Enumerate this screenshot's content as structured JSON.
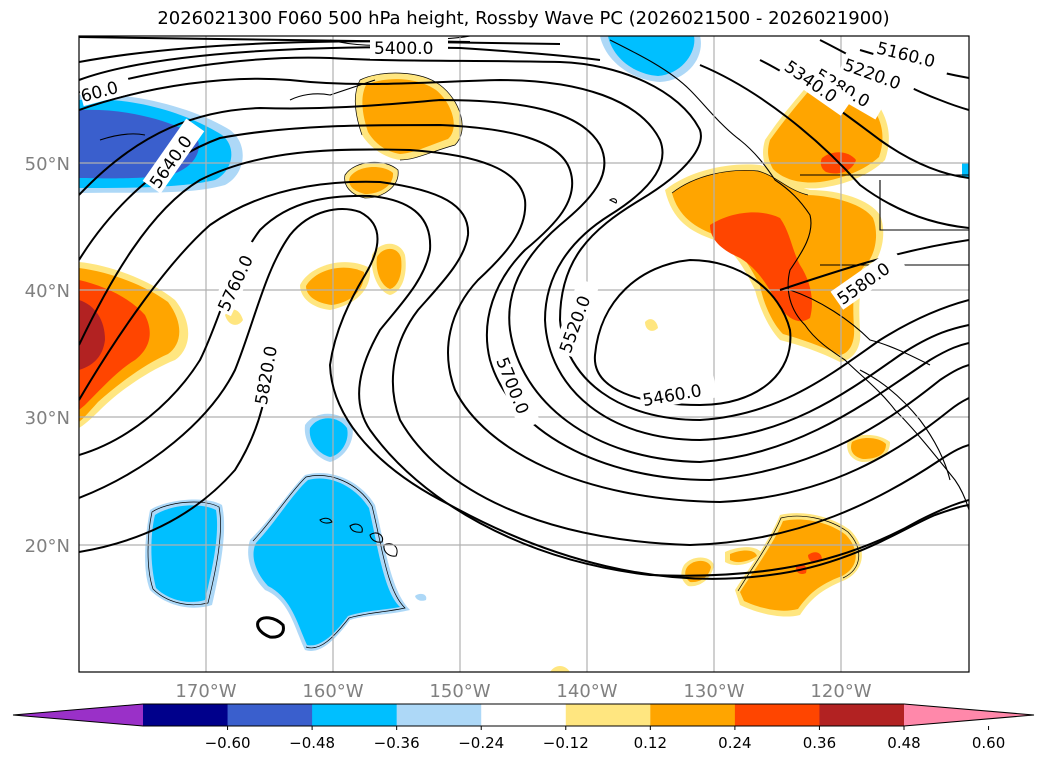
{
  "title": "2026021300 F060 500 hPa height, Rossby Wave PC (2026021500 - 2026021900)",
  "latitude_labels": [
    "50°N",
    "40°N",
    "30°N",
    "20°N"
  ],
  "longitude_labels": [
    "170°W",
    "160°W",
    "150°W",
    "140°W",
    "130°W",
    "120°W"
  ],
  "contour_labels": [
    "5400.0",
    "5160.0",
    "5220.0",
    "5280.0",
    "5340.0",
    "5640.0",
    "5760.0",
    "5820.0",
    "5700.0",
    "5520.0",
    "5460.0",
    "5580.0"
  ],
  "partial_contour_label": "60.0",
  "colorbar": {
    "ticks": [
      "−0.60",
      "−0.48",
      "−0.36",
      "−0.24",
      "−0.12",
      "0.12",
      "0.24",
      "0.36",
      "0.48",
      "0.60"
    ],
    "colors": [
      "#9a30c8",
      "#00008b",
      "#3a5fcd",
      "#00bfff",
      "#add8f7",
      "#ffffff",
      "#ffe680",
      "#ffa500",
      "#ff4500",
      "#b22222",
      "#ff88aa"
    ]
  },
  "map_extent": {
    "lon_min": -180,
    "lon_max": -110,
    "lat_min": 10,
    "lat_max": 60
  },
  "grid": true
}
